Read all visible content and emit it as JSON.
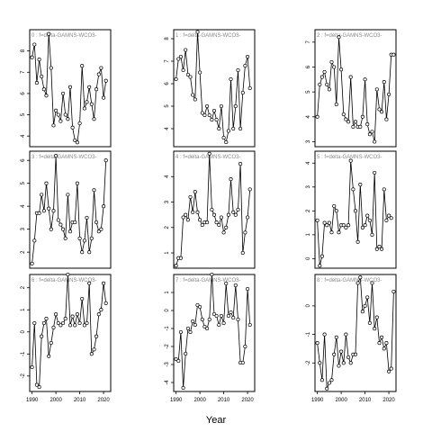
{
  "chart_data": {
    "type": "scatter",
    "xlabel": "Year",
    "x": [
      1990,
      1991,
      1992,
      1993,
      1994,
      1995,
      1996,
      1997,
      1998,
      1999,
      2000,
      2001,
      2002,
      2003,
      2004,
      2005,
      2006,
      2007,
      2008,
      2009,
      2010,
      2011,
      2012,
      2013,
      2014,
      2015,
      2016,
      2017,
      2018,
      2019,
      2020,
      2021,
      2022
    ],
    "xticks": [
      1990,
      2000,
      2010,
      2020
    ],
    "xlim": [
      1989,
      2023
    ],
    "panels": [
      {
        "title": "0 : f=delta-GAMNS-WCO3-",
        "ylim": [
          3.5,
          9.0
        ],
        "yticks": [
          4,
          5,
          6,
          7,
          8
        ],
        "values": [
          7.7,
          8.3,
          6.5,
          7.6,
          6.8,
          6.2,
          5.9,
          8.8,
          7.2,
          4.5,
          5.2,
          5.0,
          4.7,
          6.0,
          5.0,
          4.8,
          6.3,
          4.4,
          3.8,
          3.7,
          4.6,
          7.3,
          5.3,
          5.6,
          6.3,
          5.5,
          4.8,
          6.2,
          6.9,
          7.2,
          5.8,
          6.6,
          null
        ]
      },
      {
        "title": "3 : f=delta-GAMNS-WCO3-",
        "ylim": [
          1.3,
          6.4
        ],
        "yticks": [
          2,
          3,
          4,
          5,
          6
        ],
        "values": [
          1.5,
          2.5,
          3.7,
          3.7,
          4.5,
          3.8,
          5.0,
          3.9,
          3.0,
          3.8,
          6.2,
          3.4,
          3.2,
          3.0,
          2.6,
          4.5,
          2.9,
          3.3,
          3.3,
          5.0,
          2.6,
          2.0,
          2.5,
          3.5,
          2.0,
          2.6,
          4.7,
          3.3,
          2.9,
          3.0,
          4.0,
          6.0,
          null
        ]
      },
      {
        "title": "6 : f=delta-GAMNS-WCO3-",
        "ylim": [
          -2.7,
          2.6
        ],
        "yticks": [
          -2,
          -1,
          0,
          1,
          2
        ],
        "values": [
          -1.6,
          0.4,
          -2.4,
          -2.5,
          -0.2,
          0.4,
          0.6,
          -1.1,
          -0.5,
          0.2,
          0.8,
          0.4,
          0.3,
          0.4,
          0.6,
          2.6,
          0.3,
          0.7,
          0.3,
          0.8,
          0.4,
          1.5,
          0.3,
          0.4,
          2.2,
          -1.0,
          -0.8,
          -0.2,
          0.8,
          1.0,
          2.2,
          1.3,
          null
        ]
      },
      {
        "title": "1 : f=delta-GAMNS-WCO3-",
        "ylim": [
          3.2,
          8.4
        ],
        "yticks": [
          4,
          5,
          6,
          7,
          8
        ],
        "values": [
          6.2,
          7.1,
          7.2,
          6.6,
          7.5,
          6.4,
          6.3,
          5.5,
          5.3,
          8.3,
          6.5,
          4.7,
          4.6,
          5.0,
          4.6,
          4.4,
          4.8,
          4.4,
          4.0,
          5.0,
          3.6,
          3.4,
          3.9,
          6.2,
          4.0,
          5.0,
          6.6,
          4.0,
          5.6,
          6.8,
          7.2,
          5.8,
          null
        ]
      },
      {
        "title": "4 : f=delta-GAMNS-WCO3-",
        "ylim": [
          0.4,
          5.0
        ],
        "yticks": [
          1,
          2,
          3,
          4
        ],
        "values": [
          0.5,
          0.8,
          0.8,
          2.4,
          2.5,
          2.3,
          3.2,
          2.6,
          3.4,
          2.6,
          2.3,
          2.1,
          2.2,
          2.2,
          4.9,
          2.7,
          2.5,
          2.2,
          2.1,
          2.4,
          1.8,
          2.0,
          2.5,
          3.9,
          2.6,
          2.5,
          2.7,
          4.5,
          1.0,
          1.8,
          2.4,
          3.5,
          null
        ]
      },
      {
        "title": "7 : f=delta-GAMNS-WCO3-",
        "ylim": [
          -4.5,
          2.0
        ],
        "yticks": [
          -4,
          -3,
          -2,
          -1,
          0,
          1
        ],
        "values": [
          -2.7,
          -2.8,
          -1.2,
          -4.3,
          -2.4,
          -1.0,
          -1.2,
          -0.6,
          -0.8,
          0.3,
          0.2,
          -0.5,
          -0.9,
          -1.0,
          -0.5,
          2.0,
          -0.2,
          -0.3,
          -0.8,
          -0.3,
          -0.7,
          1.5,
          -0.3,
          -0.1,
          -0.4,
          1.4,
          -0.5,
          -2.9,
          -2.9,
          -2.0,
          1.2,
          -0.8,
          null
        ]
      },
      {
        "title": "2 : f=delta-GAMNS-WCO3-",
        "ylim": [
          2.8,
          7.5
        ],
        "yticks": [
          3,
          4,
          5,
          6,
          7
        ],
        "values": [
          4.0,
          5.3,
          5.6,
          5.8,
          5.3,
          5.1,
          6.2,
          6.0,
          4.5,
          7.2,
          5.9,
          4.1,
          3.9,
          3.8,
          5.6,
          3.6,
          3.8,
          3.6,
          3.6,
          4.0,
          5.5,
          3.7,
          3.3,
          3.4,
          3.0,
          5.1,
          4.3,
          4.2,
          5.4,
          3.9,
          4.9,
          6.5,
          6.5
        ]
      },
      {
        "title": "5 : f=delta-GAMNS-WCO3-",
        "ylim": [
          -0.4,
          4.5
        ],
        "yticks": [
          0,
          1,
          2,
          3,
          4
        ],
        "values": [
          1.6,
          -0.3,
          0.1,
          1.5,
          1.4,
          1.5,
          1.1,
          2.2,
          2.0,
          1.1,
          1.4,
          1.4,
          1.3,
          1.4,
          4.1,
          2.9,
          2.0,
          0.7,
          3.1,
          1.3,
          1.4,
          1.8,
          1.6,
          1.0,
          3.6,
          0.4,
          0.5,
          0.4,
          2.9,
          1.6,
          1.8,
          1.7,
          null
        ]
      },
      {
        "title": "8 : f=delta-GAMNS-WCO3-",
        "ylim": [
          -3.0,
          1.1
        ],
        "yticks": [
          -2,
          -1,
          0
        ],
        "values": [
          -1.3,
          -2.0,
          -2.6,
          -1.0,
          -2.9,
          -2.7,
          -2.6,
          -1.7,
          -1.1,
          -2.1,
          -1.6,
          -2.0,
          -1.0,
          -1.8,
          -2.0,
          -1.7,
          -1.7,
          0.8,
          1.0,
          -0.2,
          0.0,
          0.3,
          -0.6,
          0.8,
          -0.8,
          -0.4,
          -1.3,
          -1.1,
          -1.5,
          -1.3,
          -2.3,
          -2.2,
          0.5
        ]
      }
    ]
  }
}
